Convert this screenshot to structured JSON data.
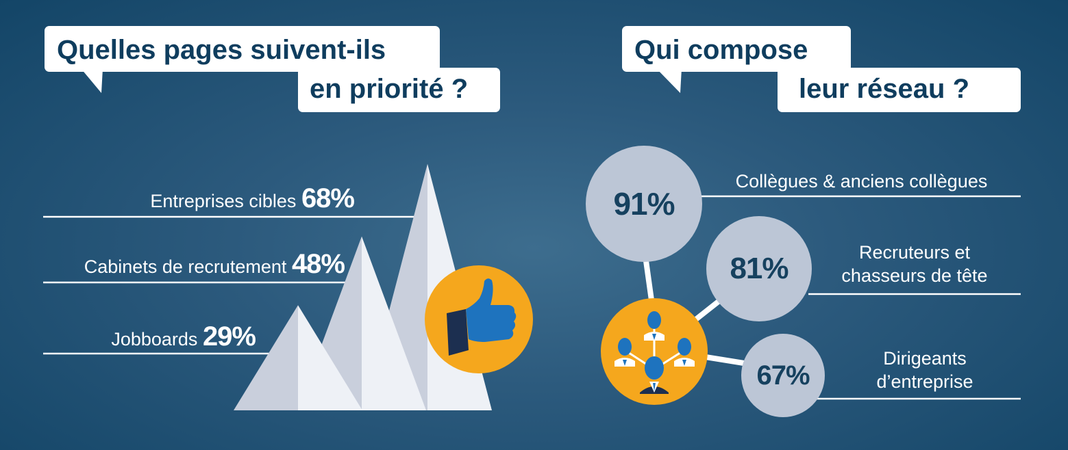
{
  "colors": {
    "background": "#2c5a7d",
    "accent_orange": "#f5a71d",
    "title_text": "#0f3d5e",
    "circle_fill": "#bcc6d6",
    "thumb_blue": "#1e73be"
  },
  "left_panel": {
    "title_line1": "Quelles pages suivent-ils",
    "title_line2": "en priorité ?",
    "icon": "thumbs-up-icon"
  },
  "right_panel": {
    "title_line1": "Qui compose",
    "title_line2": "leur réseau ?",
    "icon": "network-people-icon"
  },
  "chart_data": [
    {
      "type": "bar",
      "categories": [
        "Entreprises cibles",
        "Cabinets de recrutement",
        "Jobboards"
      ],
      "values": [
        68,
        48,
        29
      ],
      "value_labels": [
        "68%",
        "48%",
        "29%"
      ],
      "unit": "%"
    },
    {
      "type": "bar",
      "categories": [
        "Collègues & anciens collègues",
        "Recruteurs et chasseurs de tête",
        "Dirigeants d’entreprise"
      ],
      "category_lines": [
        [
          "Collègues & anciens collègues"
        ],
        [
          "Recruteurs et",
          "chasseurs de tête"
        ],
        [
          "Dirigeants",
          "d’entreprise"
        ]
      ],
      "values": [
        91,
        81,
        67
      ],
      "value_labels": [
        "91%",
        "81%",
        "67%"
      ],
      "unit": "%"
    }
  ]
}
